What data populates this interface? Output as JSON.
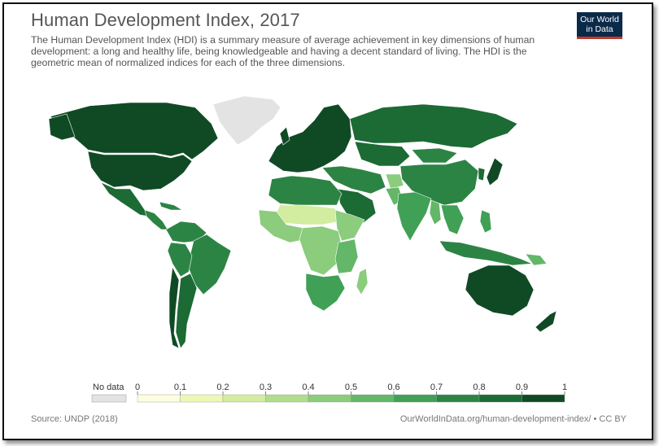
{
  "header": {
    "title": "Human Development Index, 2017",
    "subtitle": "The Human Development Index (HDI) is a summary measure of average achievement in key dimensions of human development: a long and healthy life, being knowledgeable and having a decent standard of living. The HDI is the geometric mean of normalized indices for each of the three dimensions.",
    "logo_line1": "Our World",
    "logo_line2": "in Data"
  },
  "legend": {
    "no_data_label": "No data",
    "no_data_color": "#e3e3e3",
    "ticks": [
      "0",
      "0.1",
      "0.2",
      "0.3",
      "0.4",
      "0.5",
      "0.6",
      "0.7",
      "0.8",
      "0.9",
      "1"
    ],
    "bin_colors": [
      "#fdfde0",
      "#eef7b6",
      "#d2eca0",
      "#b0dd8e",
      "#8bcc7d",
      "#63b768",
      "#40a056",
      "#2c8444",
      "#1c6a34",
      "#104a24"
    ]
  },
  "footer": {
    "source": "Source: UNDP (2018)",
    "credit": "OurWorldInData.org/human-development-index/ • CC BY"
  }
}
